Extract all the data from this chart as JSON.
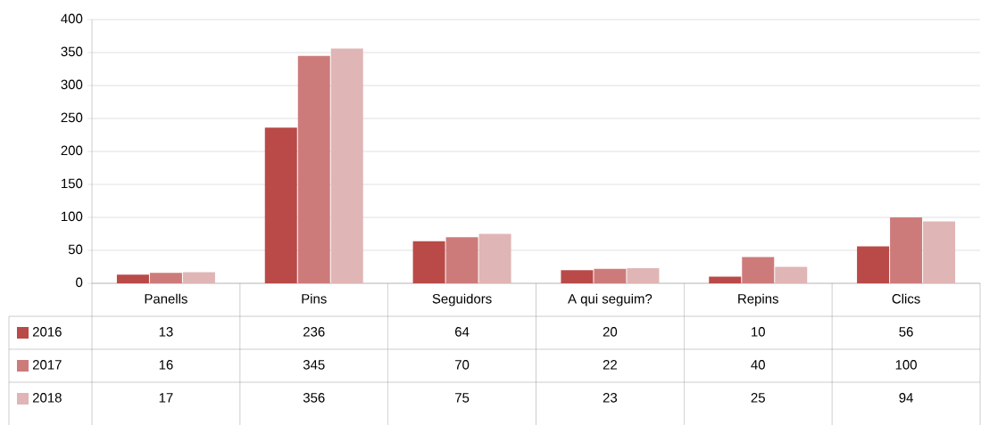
{
  "chart_data": {
    "type": "bar",
    "categories": [
      "Panells",
      "Pins",
      "Seguidors",
      "A qui seguim?",
      "Repins",
      "Clics"
    ],
    "series": [
      {
        "name": "2016",
        "color": "#b94a48",
        "values": [
          13,
          236,
          64,
          20,
          10,
          56
        ]
      },
      {
        "name": "2017",
        "color": "#cd7b7a",
        "values": [
          16,
          345,
          70,
          22,
          40,
          100
        ]
      },
      {
        "name": "2018",
        "color": "#e0b5b5",
        "values": [
          17,
          356,
          75,
          23,
          25,
          94
        ]
      }
    ],
    "ylim": [
      0,
      400
    ],
    "yticks": [
      0,
      50,
      100,
      150,
      200,
      250,
      300,
      350,
      400
    ],
    "grid": "y",
    "legend": "bottom left",
    "data_labels": true
  }
}
